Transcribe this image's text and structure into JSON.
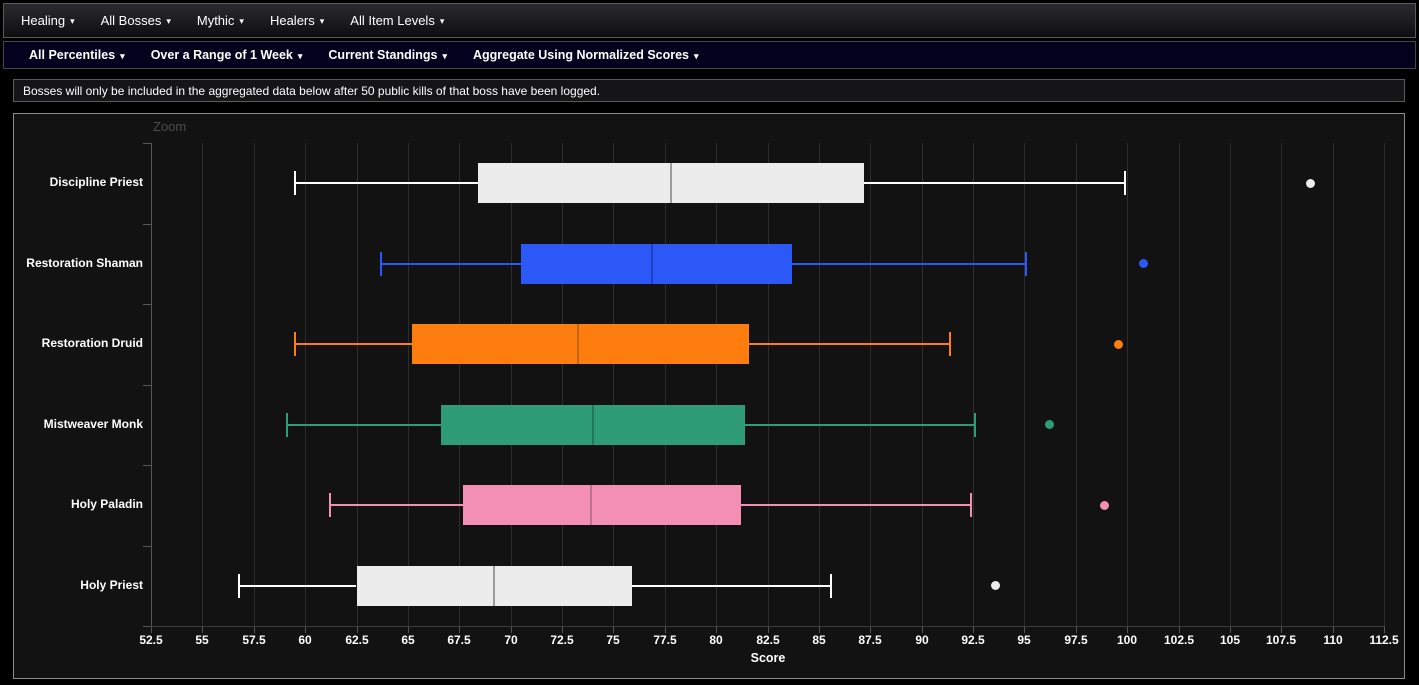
{
  "toolbars": {
    "primary": [
      {
        "label": "Healing"
      },
      {
        "label": "All Bosses"
      },
      {
        "label": "Mythic"
      },
      {
        "label": "Healers"
      },
      {
        "label": "All Item Levels"
      }
    ],
    "secondary": [
      {
        "label": "All Percentiles"
      },
      {
        "label": "Over a Range of 1 Week"
      },
      {
        "label": "Current Standings"
      },
      {
        "label": "Aggregate Using Normalized Scores"
      }
    ]
  },
  "notice": "Bosses will only be included in the aggregated data below after 50 public kills of that boss have been logged.",
  "chart": {
    "zoom_label": "Zoom"
  },
  "chart_data": {
    "type": "boxplot",
    "orientation": "horizontal",
    "title": "",
    "xlabel": "Score",
    "xlim": [
      52.5,
      112.5
    ],
    "x_ticks": [
      52.5,
      55,
      57.5,
      60,
      62.5,
      65,
      67.5,
      70,
      72.5,
      75,
      77.5,
      80,
      82.5,
      85,
      87.5,
      90,
      92.5,
      95,
      97.5,
      100,
      102.5,
      105,
      107.5,
      110,
      112.5
    ],
    "grid": true,
    "legend": false,
    "categories": [
      "Discipline Priest",
      "Restoration Shaman",
      "Restoration Druid",
      "Mistweaver Monk",
      "Holy Paladin",
      "Holy Priest"
    ],
    "series": [
      {
        "name": "Discipline Priest",
        "low": 59.5,
        "q1": 68.4,
        "median": 77.8,
        "q3": 87.2,
        "high": 99.9,
        "outliers": [
          108.9
        ],
        "color": "#ececec",
        "median_color": "#9b9b9b",
        "whisker_color": "#ffffff"
      },
      {
        "name": "Restoration Shaman",
        "low": 63.7,
        "q1": 70.5,
        "median": 76.9,
        "q3": 83.7,
        "high": 95.1,
        "outliers": [
          100.8
        ],
        "color": "#2c58f8",
        "median_color": "#1d3fc0",
        "whisker_color": "#2c58f8"
      },
      {
        "name": "Restoration Druid",
        "low": 59.5,
        "q1": 65.2,
        "median": 73.3,
        "q3": 81.6,
        "high": 91.4,
        "outliers": [
          99.6
        ],
        "color": "#fd7e0e",
        "median_color": "#c4660c",
        "whisker_color": "#fd7e0e"
      },
      {
        "name": "Mistweaver Monk",
        "low": 59.1,
        "q1": 66.6,
        "median": 74.0,
        "q3": 81.4,
        "high": 92.6,
        "outliers": [
          96.2
        ],
        "color": "#2f9c78",
        "median_color": "#23775c",
        "whisker_color": "#2f9c78"
      },
      {
        "name": "Holy Paladin",
        "low": 61.2,
        "q1": 67.7,
        "median": 73.9,
        "q3": 81.2,
        "high": 92.4,
        "outliers": [
          98.9
        ],
        "color": "#f48fb4",
        "median_color": "#bf7091",
        "whisker_color": "#f48fb4"
      },
      {
        "name": "Holy Priest",
        "low": 56.8,
        "q1": 62.5,
        "median": 69.2,
        "q3": 75.9,
        "high": 85.6,
        "outliers": [
          93.6
        ],
        "color": "#ececec",
        "median_color": "#9b9b9b",
        "whisker_color": "#ffffff"
      }
    ],
    "colors": {
      "grid": "#2d2d2d",
      "axis": "#565656",
      "x_axis_line": "#3c3c3c",
      "tick": "#565656",
      "label": "#ffffff",
      "zoom_label": "#4b4b4b",
      "panel_bg": "#121212",
      "panel_border": "#8a8a8a"
    }
  }
}
